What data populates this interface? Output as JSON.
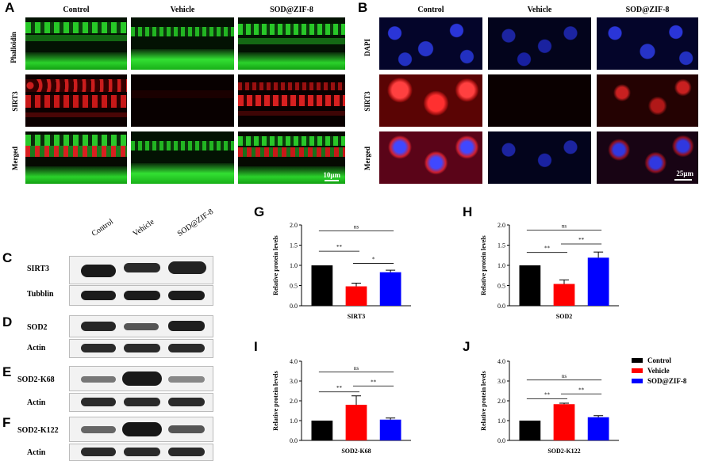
{
  "panel_labels": {
    "A": "A",
    "B": "B",
    "C": "C",
    "D": "D",
    "E": "E",
    "F": "F",
    "G": "G",
    "H": "H",
    "I": "I",
    "J": "J"
  },
  "groups": [
    "Control",
    "Vehicle",
    "SOD@ZIF-8"
  ],
  "panelA": {
    "rows": [
      "Phalloidin",
      "SIRT3",
      "Merged"
    ],
    "scale": "10μm"
  },
  "panelB": {
    "rows": [
      "DAPI",
      "SIRT3",
      "Merged"
    ],
    "scale": "25μm"
  },
  "blots": {
    "headers": [
      "Control",
      "Vehicle",
      "SOD@ZIF-8"
    ],
    "rows": [
      "SIRT3",
      "Tubblin",
      "SOD2",
      "Actin",
      "SOD2-K68",
      "Actin",
      "SOD2-K122",
      "Actin"
    ]
  },
  "legend": {
    "items": [
      "Control",
      "Vehicle",
      "SOD@ZIF-8"
    ]
  },
  "colors": {
    "Control": "#000000",
    "Vehicle": "#ff0000",
    "SOD@ZIF-8": "#0000ff"
  },
  "chart_data": [
    {
      "id": "G",
      "type": "bar",
      "categories": [
        "Control",
        "Vehicle",
        "SOD@ZIF-8"
      ],
      "values": [
        1.0,
        0.48,
        0.83
      ],
      "errors": [
        0,
        0.08,
        0.05
      ],
      "xlabel": "SIRT3",
      "ylabel": "Relative protein levels",
      "ylim": [
        0,
        2.0
      ],
      "yticks": [
        "0.0",
        "0.5",
        "1.0",
        "1.5",
        "2.0"
      ],
      "sig": [
        {
          "from": 0,
          "to": 1,
          "label": "**",
          "level": 1.35
        },
        {
          "from": 1,
          "to": 2,
          "label": "*",
          "level": 1.05
        },
        {
          "from": 0,
          "to": 2,
          "label": "ns",
          "level": 1.85
        }
      ]
    },
    {
      "id": "H",
      "type": "bar",
      "categories": [
        "Control",
        "Vehicle",
        "SOD@ZIF-8"
      ],
      "values": [
        1.0,
        0.54,
        1.19
      ],
      "errors": [
        0,
        0.1,
        0.14
      ],
      "xlabel": "SOD2",
      "ylabel": "Relative protein levels",
      "ylim": [
        0,
        2.0
      ],
      "yticks": [
        "0.0",
        "0.5",
        "1.0",
        "1.5",
        "2.0"
      ],
      "sig": [
        {
          "from": 0,
          "to": 1,
          "label": "**",
          "level": 1.32
        },
        {
          "from": 1,
          "to": 2,
          "label": "**",
          "level": 1.53
        },
        {
          "from": 0,
          "to": 2,
          "label": "ns",
          "level": 1.87
        }
      ]
    },
    {
      "id": "I",
      "type": "bar",
      "categories": [
        "Control",
        "Vehicle",
        "SOD@ZIF-8"
      ],
      "values": [
        1.0,
        1.8,
        1.05
      ],
      "errors": [
        0,
        0.45,
        0.08
      ],
      "xlabel": "SOD2-K68",
      "ylabel": "Relative protein levels",
      "ylim": [
        0,
        4.0
      ],
      "yticks": [
        "0.0",
        "1.0",
        "2.0",
        "3.0",
        "4.0"
      ],
      "sig": [
        {
          "from": 0,
          "to": 1,
          "label": "**",
          "level": 2.45
        },
        {
          "from": 1,
          "to": 2,
          "label": "**",
          "level": 2.75
        },
        {
          "from": 0,
          "to": 2,
          "label": "ns",
          "level": 3.45
        }
      ]
    },
    {
      "id": "J",
      "type": "bar",
      "categories": [
        "Control",
        "Vehicle",
        "SOD@ZIF-8"
      ],
      "values": [
        1.0,
        1.83,
        1.17
      ],
      "errors": [
        0,
        0.05,
        0.08
      ],
      "xlabel": "SOD2-K122",
      "ylabel": "Relative protein levels",
      "ylim": [
        0,
        4.0
      ],
      "yticks": [
        "0.0",
        "1.0",
        "2.0",
        "3.0",
        "4.0"
      ],
      "sig": [
        {
          "from": 0,
          "to": 1,
          "label": "**",
          "level": 2.1
        },
        {
          "from": 1,
          "to": 2,
          "label": "**",
          "level": 2.35
        },
        {
          "from": 0,
          "to": 2,
          "label": "ns",
          "level": 3.05
        }
      ]
    }
  ]
}
